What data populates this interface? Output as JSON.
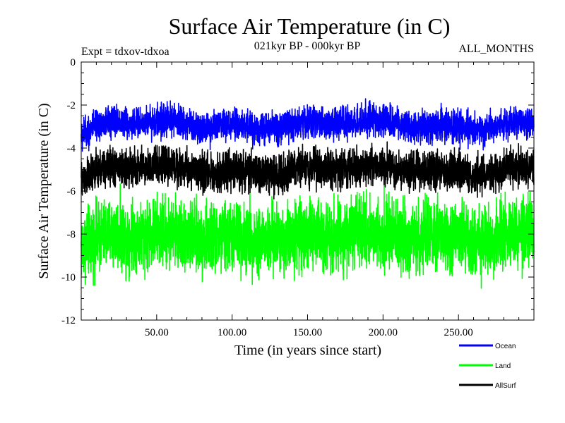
{
  "chart_data": {
    "type": "line",
    "title": "Surface Air Temperature (in C)",
    "subtitle": "021kyr BP - 000kyr BP",
    "expt_label": "Expt = tdxov-tdxoa",
    "months_label": "ALL_MONTHS",
    "xlabel": "Time (in years since start)",
    "ylabel": "Surface Air Temperature (in C)",
    "xlim": [
      0,
      300
    ],
    "ylim": [
      -12,
      0
    ],
    "x_ticks": [
      50,
      100,
      150,
      200,
      250
    ],
    "x_tick_labels": [
      "50.00",
      "100.00",
      "150.00",
      "200.00",
      "250.00"
    ],
    "y_ticks": [
      0,
      -2,
      -4,
      -6,
      -8,
      -10,
      -12
    ],
    "y_tick_labels": [
      "0",
      "-2",
      "-4",
      "-6",
      "-8",
      "-10",
      "-12"
    ],
    "legend_position": "bottom-right",
    "series": [
      {
        "name": "Ocean",
        "color": "#0000ff",
        "mean": -2.9,
        "amplitude": 0.55,
        "x_step": 0.0833
      },
      {
        "name": "Land",
        "color": "#00ff00",
        "mean": -8.1,
        "amplitude": 1.2,
        "x_step": 0.0833
      },
      {
        "name": "AllSurf",
        "color": "#000000",
        "mean": -5.0,
        "amplitude": 0.65,
        "x_step": 0.0833
      }
    ],
    "grid": false
  }
}
